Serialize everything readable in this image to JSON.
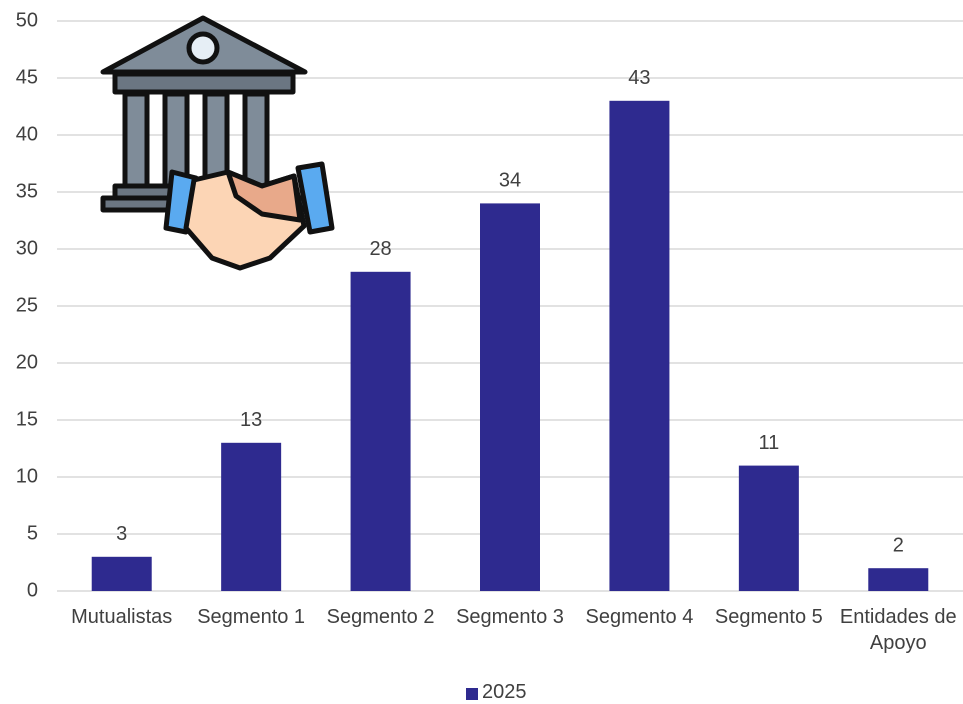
{
  "chart_data": {
    "type": "bar",
    "categories": [
      "Mutualistas",
      "Segmento 1",
      "Segmento 2",
      "Segmento 3",
      "Segmento 4",
      "Segmento 5",
      "Entidades de Apoyo"
    ],
    "series": [
      {
        "name": "2025",
        "color": "#2e2a8f",
        "values": [
          3,
          13,
          28,
          34,
          43,
          11,
          2
        ]
      }
    ],
    "ylim": [
      0,
      50
    ],
    "yticks": [
      0,
      5,
      10,
      15,
      20,
      25,
      30,
      35,
      40,
      45,
      50
    ],
    "grid": true,
    "legend": "bottom"
  }
}
